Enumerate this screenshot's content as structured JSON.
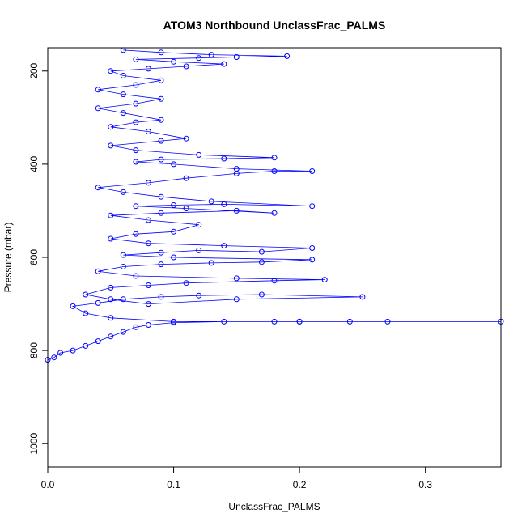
{
  "chart_data": {
    "type": "scatter",
    "title": "ATOM3 Northbound UnclassFrac_PALMS",
    "xlabel": "UnclassFrac_PALMS",
    "ylabel": "Pressure (mbar)",
    "xlim": [
      0,
      0.36
    ],
    "ylim": [
      1050,
      150
    ],
    "y_reversed": true,
    "x_ticks": [
      {
        "value": 0.0,
        "label": "0.0"
      },
      {
        "value": 0.1,
        "label": "0.1"
      },
      {
        "value": 0.2,
        "label": "0.2"
      },
      {
        "value": 0.3,
        "label": "0.3"
      }
    ],
    "y_ticks": [
      {
        "value": 200,
        "label": "200"
      },
      {
        "value": 400,
        "label": "400"
      },
      {
        "value": 600,
        "label": "600"
      },
      {
        "value": 800,
        "label": "800"
      },
      {
        "value": 1000,
        "label": "1000"
      }
    ],
    "grid": false,
    "legend": "none",
    "color": "#0000ff",
    "marker": "open-circle",
    "lines": true,
    "series": [
      {
        "points": [
          [
            0.0,
            820
          ],
          [
            0.005,
            815
          ],
          [
            0.01,
            805
          ],
          [
            0.02,
            800
          ],
          [
            0.03,
            790
          ],
          [
            0.04,
            780
          ],
          [
            0.05,
            770
          ],
          [
            0.06,
            760
          ],
          [
            0.07,
            750
          ],
          [
            0.08,
            745
          ],
          [
            0.1,
            740
          ],
          [
            0.14,
            738
          ],
          [
            0.18,
            738
          ],
          [
            0.2,
            738
          ],
          [
            0.24,
            738
          ],
          [
            0.27,
            738
          ],
          [
            0.36,
            738
          ],
          [
            0.2,
            738
          ],
          [
            0.1,
            738
          ],
          [
            0.05,
            730
          ],
          [
            0.03,
            720
          ],
          [
            0.02,
            705
          ],
          [
            0.04,
            698
          ],
          [
            0.06,
            690
          ],
          [
            0.09,
            685
          ],
          [
            0.12,
            682
          ],
          [
            0.17,
            680
          ],
          [
            0.25,
            685
          ],
          [
            0.15,
            690
          ],
          [
            0.08,
            700
          ],
          [
            0.05,
            690
          ],
          [
            0.03,
            680
          ],
          [
            0.05,
            665
          ],
          [
            0.08,
            660
          ],
          [
            0.11,
            655
          ],
          [
            0.18,
            650
          ],
          [
            0.22,
            648
          ],
          [
            0.15,
            645
          ],
          [
            0.07,
            640
          ],
          [
            0.04,
            630
          ],
          [
            0.06,
            620
          ],
          [
            0.09,
            615
          ],
          [
            0.13,
            612
          ],
          [
            0.17,
            610
          ],
          [
            0.21,
            605
          ],
          [
            0.1,
            600
          ],
          [
            0.06,
            595
          ],
          [
            0.09,
            590
          ],
          [
            0.12,
            585
          ],
          [
            0.17,
            588
          ],
          [
            0.21,
            580
          ],
          [
            0.14,
            575
          ],
          [
            0.08,
            570
          ],
          [
            0.05,
            560
          ],
          [
            0.07,
            550
          ],
          [
            0.1,
            545
          ],
          [
            0.12,
            530
          ],
          [
            0.08,
            520
          ],
          [
            0.05,
            510
          ],
          [
            0.09,
            505
          ],
          [
            0.15,
            500
          ],
          [
            0.18,
            505
          ],
          [
            0.11,
            495
          ],
          [
            0.07,
            490
          ],
          [
            0.1,
            488
          ],
          [
            0.14,
            486
          ],
          [
            0.21,
            490
          ],
          [
            0.13,
            480
          ],
          [
            0.09,
            470
          ],
          [
            0.06,
            460
          ],
          [
            0.04,
            450
          ],
          [
            0.08,
            440
          ],
          [
            0.11,
            430
          ],
          [
            0.15,
            420
          ],
          [
            0.18,
            415
          ],
          [
            0.21,
            415
          ],
          [
            0.15,
            410
          ],
          [
            0.1,
            400
          ],
          [
            0.07,
            395
          ],
          [
            0.09,
            390
          ],
          [
            0.14,
            388
          ],
          [
            0.18,
            386
          ],
          [
            0.12,
            380
          ],
          [
            0.07,
            370
          ],
          [
            0.05,
            360
          ],
          [
            0.09,
            350
          ],
          [
            0.11,
            345
          ],
          [
            0.08,
            330
          ],
          [
            0.05,
            320
          ],
          [
            0.07,
            310
          ],
          [
            0.09,
            305
          ],
          [
            0.06,
            290
          ],
          [
            0.04,
            280
          ],
          [
            0.07,
            270
          ],
          [
            0.09,
            260
          ],
          [
            0.06,
            250
          ],
          [
            0.04,
            240
          ],
          [
            0.07,
            230
          ],
          [
            0.09,
            220
          ],
          [
            0.06,
            210
          ],
          [
            0.05,
            200
          ],
          [
            0.08,
            195
          ],
          [
            0.11,
            190
          ],
          [
            0.14,
            185
          ],
          [
            0.1,
            180
          ],
          [
            0.07,
            175
          ],
          [
            0.12,
            172
          ],
          [
            0.15,
            170
          ],
          [
            0.19,
            168
          ],
          [
            0.13,
            165
          ],
          [
            0.09,
            160
          ],
          [
            0.06,
            155
          ]
        ]
      }
    ]
  }
}
